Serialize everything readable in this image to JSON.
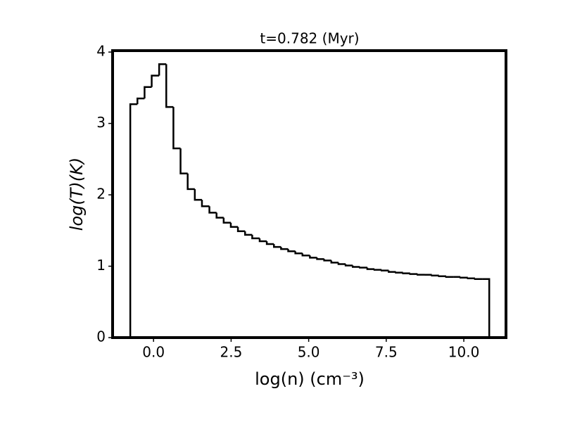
{
  "chart_data": {
    "type": "histogram",
    "title": "t=0.782 (Myr)",
    "xlabel": "log(n) (cm⁻³)",
    "ylabel": "log(T)(K)",
    "bins": [
      -0.75,
      -0.52,
      -0.29,
      -0.06,
      0.18,
      0.41,
      0.64,
      0.87,
      1.1,
      1.33,
      1.56,
      1.8,
      2.03,
      2.26,
      2.49,
      2.72,
      2.95,
      3.18,
      3.42,
      3.65,
      3.88,
      4.11,
      4.34,
      4.57,
      4.8,
      5.04,
      5.27,
      5.5,
      5.73,
      5.96,
      6.19,
      6.42,
      6.65,
      6.89,
      7.12,
      7.35,
      7.58,
      7.81,
      8.04,
      8.27,
      8.51,
      8.74,
      8.97,
      9.2,
      9.43,
      9.66,
      9.89,
      10.13,
      10.36,
      10.59,
      10.82
    ],
    "values": [
      3.27,
      3.35,
      3.51,
      3.67,
      3.83,
      3.23,
      2.65,
      2.3,
      2.08,
      1.93,
      1.84,
      1.75,
      1.68,
      1.61,
      1.55,
      1.49,
      1.44,
      1.39,
      1.35,
      1.31,
      1.27,
      1.24,
      1.21,
      1.18,
      1.15,
      1.12,
      1.1,
      1.08,
      1.05,
      1.03,
      1.01,
      0.99,
      0.98,
      0.96,
      0.95,
      0.94,
      0.92,
      0.91,
      0.9,
      0.89,
      0.88,
      0.88,
      0.87,
      0.86,
      0.85,
      0.85,
      0.84,
      0.83,
      0.82,
      0.82
    ],
    "color": "#000000",
    "xlim": [
      -1.32,
      11.36
    ],
    "ylim": [
      0,
      4.02
    ],
    "xticks": [
      {
        "value": 0,
        "label": "0.0"
      },
      2.5,
      {
        "value": 5,
        "label": "5.0"
      },
      7.5,
      {
        "value": 10,
        "label": "10.0"
      }
    ],
    "yticks": [
      0,
      1,
      2,
      3,
      4
    ]
  }
}
